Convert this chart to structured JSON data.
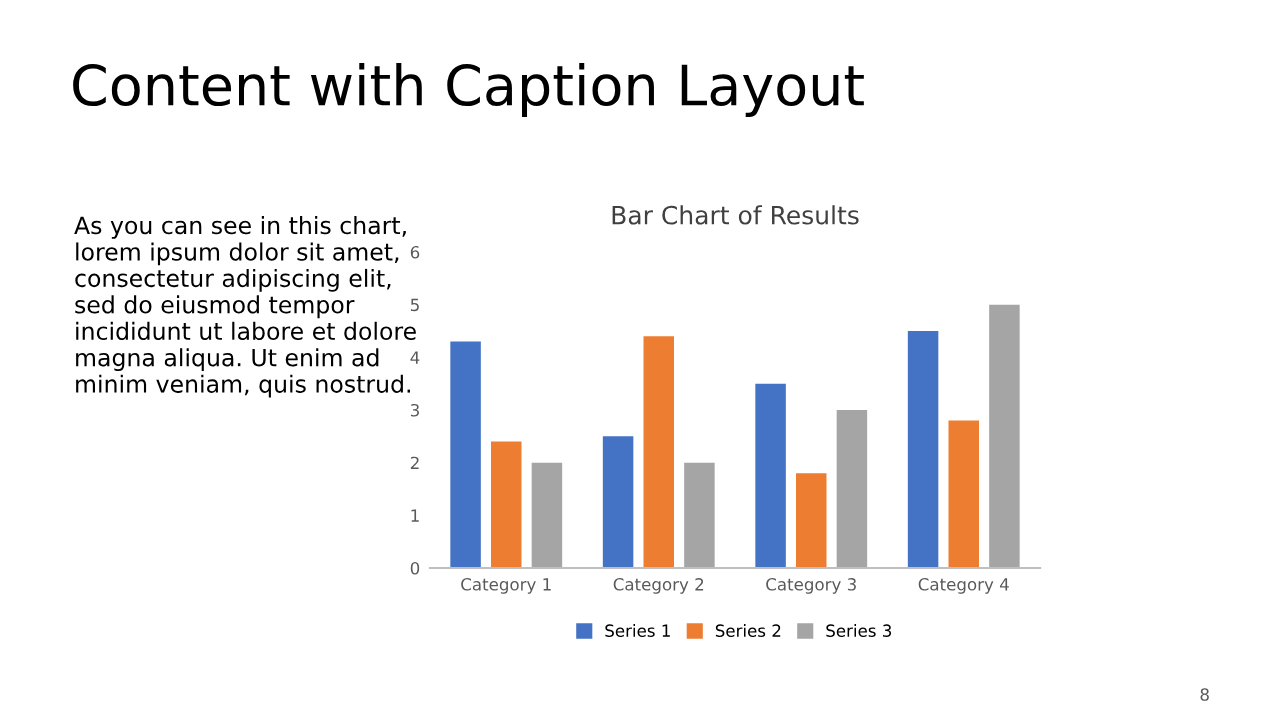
{
  "chart_data": {
    "type": "bar",
    "title": "Bar Chart of Results",
    "categories": [
      "Category 1",
      "Category 2",
      "Category 3",
      "Category 4"
    ],
    "series": [
      {
        "name": "Series 1",
        "color": "#4472c4",
        "values": [
          4.3,
          2.5,
          3.5,
          4.5
        ]
      },
      {
        "name": "Series 2",
        "color": "#ed7d31",
        "values": [
          2.4,
          4.4,
          1.8,
          2.8
        ]
      },
      {
        "name": "Series 3",
        "color": "#a5a5a5",
        "values": [
          2,
          2,
          3,
          5
        ]
      }
    ],
    "ylim": [
      0,
      6
    ],
    "yticks": [
      0,
      1,
      2,
      3,
      4,
      5,
      6
    ],
    "grid": false,
    "legend": "bottom",
    "annotations": [
      "Content with Caption Layout",
      "As you can see in this chart,\nlorem ipsum dolor sit amet,\nconsectetur adipiscing elit,\nsed do eiusmod tempor\nincididunt ut labore et dolore\nmagna aliqua. Ut enim ad\nminim veniam, quis nostrud.",
      "8"
    ]
  }
}
